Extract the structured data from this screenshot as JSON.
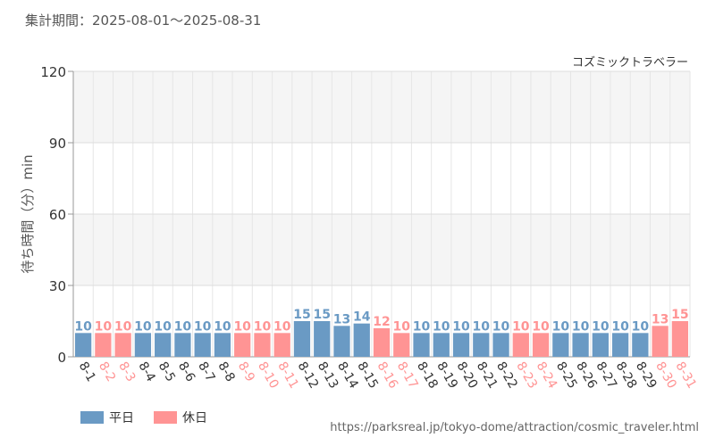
{
  "header": {
    "period_label": "集計期間：2025-08-01～2025-08-31"
  },
  "colors": {
    "weekday": "#6a9ac4",
    "holiday": "#ff9494",
    "grid": "#e6e6e6",
    "band": "#f5f5f5",
    "axis_text": "#333333"
  },
  "legend": {
    "weekday_label": "平日",
    "holiday_label": "休日"
  },
  "source": {
    "url": "https://parksreal.jp/tokyo-dome/attraction/cosmic_traveler.html"
  },
  "chart_data": {
    "type": "bar",
    "title": "コズミックトラベラー",
    "xlabel": "",
    "ylabel": "待ち時間（分）min",
    "ylim": [
      0,
      120
    ],
    "yticks": [
      0,
      30,
      60,
      90,
      120
    ],
    "grid": true,
    "legend_position": "bottom-left",
    "categories": [
      "8-1",
      "8-2",
      "8-3",
      "8-4",
      "8-5",
      "8-6",
      "8-7",
      "8-8",
      "8-9",
      "8-10",
      "8-11",
      "8-12",
      "8-13",
      "8-14",
      "8-15",
      "8-16",
      "8-17",
      "8-18",
      "8-19",
      "8-20",
      "8-21",
      "8-22",
      "8-23",
      "8-24",
      "8-25",
      "8-26",
      "8-27",
      "8-28",
      "8-29",
      "8-30",
      "8-31"
    ],
    "values": [
      10,
      10,
      10,
      10,
      10,
      10,
      10,
      10,
      10,
      10,
      10,
      15,
      15,
      13,
      14,
      12,
      10,
      10,
      10,
      10,
      10,
      10,
      10,
      10,
      10,
      10,
      10,
      10,
      10,
      13,
      15
    ],
    "day_type": [
      "平日",
      "休日",
      "休日",
      "平日",
      "平日",
      "平日",
      "平日",
      "平日",
      "休日",
      "休日",
      "休日",
      "平日",
      "平日",
      "平日",
      "平日",
      "休日",
      "休日",
      "平日",
      "平日",
      "平日",
      "平日",
      "平日",
      "休日",
      "休日",
      "平日",
      "平日",
      "平日",
      "平日",
      "平日",
      "休日",
      "休日"
    ]
  }
}
